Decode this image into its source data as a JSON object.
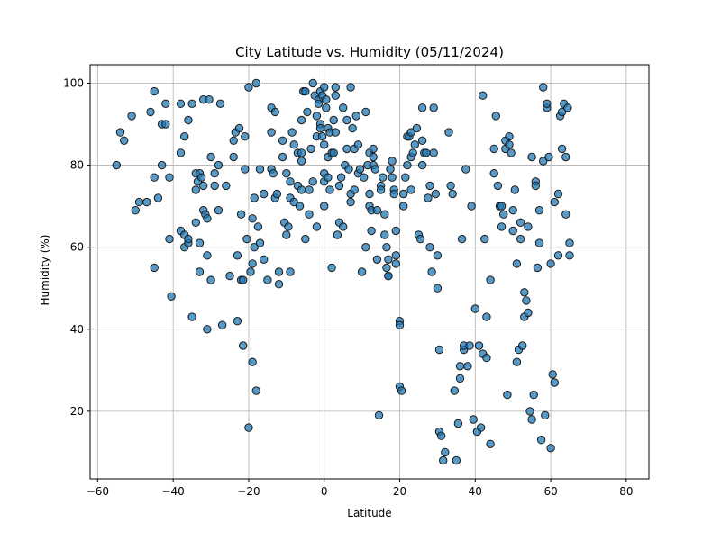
{
  "chart_data": {
    "type": "scatter",
    "title": "City Latitude vs. Humidity (05/11/2024)",
    "xlabel": "Latitude",
    "ylabel": "Humidity (%)",
    "xlim": [
      -62,
      86
    ],
    "ylim": [
      3.5,
      104.5
    ],
    "xticks": [
      -60,
      -40,
      -20,
      0,
      20,
      40,
      60,
      80
    ],
    "yticks": [
      20,
      40,
      60,
      80,
      100
    ],
    "xtick_labels": [
      "−60",
      "−40",
      "−20",
      "0",
      "20",
      "40",
      "60",
      "80"
    ],
    "ytick_labels": [
      "20",
      "40",
      "60",
      "80",
      "100"
    ],
    "grid": true,
    "marker_color": "#1f77b4",
    "marker_edge_color": "#1a1a1a",
    "points": [
      [
        -55,
        80
      ],
      [
        -54,
        88
      ],
      [
        -53,
        86
      ],
      [
        -51,
        92
      ],
      [
        -50,
        69
      ],
      [
        -49,
        71
      ],
      [
        -47,
        71
      ],
      [
        -46,
        93
      ],
      [
        -45,
        98
      ],
      [
        -45,
        55
      ],
      [
        -45,
        77
      ],
      [
        -44,
        72
      ],
      [
        -43,
        80
      ],
      [
        -43,
        90
      ],
      [
        -42,
        95
      ],
      [
        -42,
        90
      ],
      [
        -41,
        62
      ],
      [
        -41,
        77
      ],
      [
        -40.5,
        48
      ],
      [
        -38,
        95
      ],
      [
        -38,
        83
      ],
      [
        -38,
        64
      ],
      [
        -37,
        63
      ],
      [
        -37,
        60
      ],
      [
        -37,
        87
      ],
      [
        -36,
        91
      ],
      [
        -36,
        61
      ],
      [
        -36,
        62
      ],
      [
        -35,
        43
      ],
      [
        -35,
        95
      ],
      [
        -34,
        66
      ],
      [
        -34,
        78
      ],
      [
        -34,
        74
      ],
      [
        -33.5,
        76
      ],
      [
        -33,
        54
      ],
      [
        -33,
        78
      ],
      [
        -33,
        61
      ],
      [
        -32.5,
        77
      ],
      [
        -32,
        96
      ],
      [
        -32,
        75
      ],
      [
        -32,
        69
      ],
      [
        -31.5,
        68
      ],
      [
        -31,
        67
      ],
      [
        -31,
        58
      ],
      [
        -31,
        40
      ],
      [
        -30.5,
        96
      ],
      [
        -30,
        52
      ],
      [
        -30,
        82
      ],
      [
        -29,
        75
      ],
      [
        -29,
        78
      ],
      [
        -28,
        69
      ],
      [
        -28,
        80
      ],
      [
        -27.5,
        95
      ],
      [
        -27,
        41
      ],
      [
        -26,
        75
      ],
      [
        -25,
        53
      ],
      [
        -24,
        82
      ],
      [
        -24,
        86
      ],
      [
        -23.5,
        88
      ],
      [
        -23,
        58
      ],
      [
        -23,
        42
      ],
      [
        -22.5,
        89
      ],
      [
        -22,
        52
      ],
      [
        -22,
        68
      ],
      [
        -21.5,
        36
      ],
      [
        -21.5,
        52
      ],
      [
        -21,
        79
      ],
      [
        -21,
        87
      ],
      [
        -20.5,
        62
      ],
      [
        -20,
        99
      ],
      [
        -20,
        16
      ],
      [
        -19.5,
        54
      ],
      [
        -19,
        56
      ],
      [
        -19,
        67
      ],
      [
        -19,
        32
      ],
      [
        -18.5,
        72
      ],
      [
        -18.5,
        60
      ],
      [
        -18,
        100
      ],
      [
        -18,
        25
      ],
      [
        -17.5,
        65
      ],
      [
        -17,
        61
      ],
      [
        -17,
        79
      ],
      [
        -16,
        73
      ],
      [
        -16,
        57
      ],
      [
        -15,
        52
      ],
      [
        -14,
        94
      ],
      [
        -14,
        88
      ],
      [
        -14,
        79
      ],
      [
        -13.5,
        78
      ],
      [
        -13,
        93
      ],
      [
        -13,
        72
      ],
      [
        -12.5,
        73
      ],
      [
        -12,
        51
      ],
      [
        -12,
        54
      ],
      [
        -11,
        86
      ],
      [
        -11,
        82
      ],
      [
        -10.5,
        66
      ],
      [
        -10,
        78
      ],
      [
        -10,
        63
      ],
      [
        -9.5,
        65
      ],
      [
        -9,
        76
      ],
      [
        -9,
        72
      ],
      [
        -9,
        54
      ],
      [
        -8.5,
        88
      ],
      [
        -8,
        71
      ],
      [
        -8,
        85
      ],
      [
        -7,
        83
      ],
      [
        -7,
        75
      ],
      [
        -6.5,
        70
      ],
      [
        -6,
        91
      ],
      [
        -6,
        83
      ],
      [
        -6,
        81
      ],
      [
        -6,
        74
      ],
      [
        -5.5,
        98
      ],
      [
        -5,
        98
      ],
      [
        -5,
        62
      ],
      [
        -4.5,
        93
      ],
      [
        -4,
        74
      ],
      [
        -4,
        68
      ],
      [
        -3.5,
        84
      ],
      [
        -3,
        100
      ],
      [
        -3,
        76
      ],
      [
        -2.5,
        97
      ],
      [
        -2,
        92
      ],
      [
        -2,
        87
      ],
      [
        -2,
        65
      ],
      [
        -1.5,
        96
      ],
      [
        -1.5,
        95
      ],
      [
        -1,
        98
      ],
      [
        -1,
        90
      ],
      [
        -1,
        89
      ],
      [
        -0.5,
        97
      ],
      [
        -0.5,
        87
      ],
      [
        0,
        99
      ],
      [
        0,
        85
      ],
      [
        0,
        78
      ],
      [
        0,
        70
      ],
      [
        0,
        76
      ],
      [
        0.5,
        96
      ],
      [
        0.5,
        94
      ],
      [
        1,
        89
      ],
      [
        1,
        82
      ],
      [
        1,
        77
      ],
      [
        1.5,
        88
      ],
      [
        1.5,
        74
      ],
      [
        2,
        83
      ],
      [
        2,
        55
      ],
      [
        2.5,
        91
      ],
      [
        2.5,
        83
      ],
      [
        3,
        99
      ],
      [
        3,
        97
      ],
      [
        3,
        88
      ],
      [
        3.5,
        63
      ],
      [
        4,
        75
      ],
      [
        4,
        66
      ],
      [
        4.5,
        77
      ],
      [
        5,
        65
      ],
      [
        5,
        94
      ],
      [
        5.5,
        80
      ],
      [
        6,
        84
      ],
      [
        6,
        91
      ],
      [
        6.5,
        79
      ],
      [
        7,
        99
      ],
      [
        7,
        73
      ],
      [
        7,
        71
      ],
      [
        7.5,
        89
      ],
      [
        8,
        84
      ],
      [
        8,
        74
      ],
      [
        8.5,
        92
      ],
      [
        9,
        78
      ],
      [
        9,
        85
      ],
      [
        9.5,
        79
      ],
      [
        10,
        54
      ],
      [
        10.5,
        77
      ],
      [
        11,
        60
      ],
      [
        11,
        93
      ],
      [
        11.5,
        80
      ],
      [
        12,
        83
      ],
      [
        12,
        73
      ],
      [
        12,
        70
      ],
      [
        12.5,
        69
      ],
      [
        12.5,
        64
      ],
      [
        13,
        84
      ],
      [
        13,
        82
      ],
      [
        13,
        80
      ],
      [
        13.5,
        79
      ],
      [
        14,
        57
      ],
      [
        14,
        69
      ],
      [
        14.5,
        19
      ],
      [
        15,
        75
      ],
      [
        15,
        74
      ],
      [
        15.5,
        77
      ],
      [
        16,
        68
      ],
      [
        16,
        63
      ],
      [
        16.5,
        60
      ],
      [
        16.5,
        55
      ],
      [
        17,
        57
      ],
      [
        17,
        53
      ],
      [
        17,
        53
      ],
      [
        17.5,
        79
      ],
      [
        18,
        81
      ],
      [
        18,
        77
      ],
      [
        18.5,
        74
      ],
      [
        18.5,
        73
      ],
      [
        19,
        64
      ],
      [
        19,
        58
      ],
      [
        19,
        56
      ],
      [
        20,
        42
      ],
      [
        20,
        41
      ],
      [
        20,
        26
      ],
      [
        20.5,
        25
      ],
      [
        21,
        73
      ],
      [
        21,
        70
      ],
      [
        21.5,
        77
      ],
      [
        22,
        80
      ],
      [
        22,
        87
      ],
      [
        22.5,
        87
      ],
      [
        23,
        88
      ],
      [
        23,
        82
      ],
      [
        23,
        74
      ],
      [
        23.5,
        83
      ],
      [
        24,
        85
      ],
      [
        24.5,
        89
      ],
      [
        25,
        63
      ],
      [
        25.5,
        62
      ],
      [
        26,
        94
      ],
      [
        26,
        86
      ],
      [
        26,
        80
      ],
      [
        26.5,
        83
      ],
      [
        27,
        83
      ],
      [
        27.5,
        72
      ],
      [
        28,
        75
      ],
      [
        28,
        60
      ],
      [
        28.5,
        54
      ],
      [
        29,
        94
      ],
      [
        29,
        83
      ],
      [
        29.5,
        73
      ],
      [
        30,
        58
      ],
      [
        30,
        50
      ],
      [
        30.5,
        35
      ],
      [
        30.5,
        15
      ],
      [
        31,
        14
      ],
      [
        31.5,
        8
      ],
      [
        32,
        10
      ],
      [
        33,
        88
      ],
      [
        33.5,
        75
      ],
      [
        34,
        73
      ],
      [
        34.5,
        25
      ],
      [
        35,
        8
      ],
      [
        35.5,
        17
      ],
      [
        36,
        31
      ],
      [
        36,
        28
      ],
      [
        36.5,
        62
      ],
      [
        37,
        35
      ],
      [
        37,
        36
      ],
      [
        37.5,
        79
      ],
      [
        38,
        31
      ],
      [
        38.5,
        36
      ],
      [
        39,
        70
      ],
      [
        39.5,
        18
      ],
      [
        40,
        45
      ],
      [
        40.5,
        15
      ],
      [
        41,
        36
      ],
      [
        41.5,
        16
      ],
      [
        42,
        97
      ],
      [
        42,
        34
      ],
      [
        42.5,
        62
      ],
      [
        43,
        33
      ],
      [
        43,
        43
      ],
      [
        44,
        52
      ],
      [
        44,
        12
      ],
      [
        45,
        84
      ],
      [
        45,
        78
      ],
      [
        45.5,
        92
      ],
      [
        46,
        75
      ],
      [
        46.5,
        70
      ],
      [
        47,
        65
      ],
      [
        47,
        70
      ],
      [
        47.5,
        68
      ],
      [
        48,
        86
      ],
      [
        48,
        84
      ],
      [
        48.5,
        24
      ],
      [
        49,
        87
      ],
      [
        49,
        85
      ],
      [
        49.5,
        83
      ],
      [
        50,
        69
      ],
      [
        50,
        64
      ],
      [
        50.5,
        74
      ],
      [
        51,
        32
      ],
      [
        51,
        56
      ],
      [
        51.5,
        35
      ],
      [
        52,
        62
      ],
      [
        52,
        66
      ],
      [
        52.5,
        36
      ],
      [
        53,
        49
      ],
      [
        53,
        43
      ],
      [
        53.5,
        47
      ],
      [
        54,
        44
      ],
      [
        54,
        65
      ],
      [
        54.5,
        20
      ],
      [
        55,
        82
      ],
      [
        55,
        18
      ],
      [
        55.5,
        24
      ],
      [
        56,
        76
      ],
      [
        56,
        75
      ],
      [
        56.5,
        55
      ],
      [
        57,
        61
      ],
      [
        57,
        69
      ],
      [
        57.5,
        13
      ],
      [
        58,
        99
      ],
      [
        58,
        81
      ],
      [
        58.5,
        19
      ],
      [
        59,
        94
      ],
      [
        59,
        95
      ],
      [
        59.5,
        82
      ],
      [
        60,
        11
      ],
      [
        60,
        56
      ],
      [
        60.5,
        29
      ],
      [
        61,
        71
      ],
      [
        61,
        27
      ],
      [
        62,
        73
      ],
      [
        62,
        58
      ],
      [
        62.5,
        92
      ],
      [
        63,
        93
      ],
      [
        63,
        84
      ],
      [
        63.5,
        95
      ],
      [
        64,
        82
      ],
      [
        64,
        68
      ],
      [
        64.5,
        94
      ],
      [
        65,
        58
      ],
      [
        65,
        61
      ]
    ]
  }
}
